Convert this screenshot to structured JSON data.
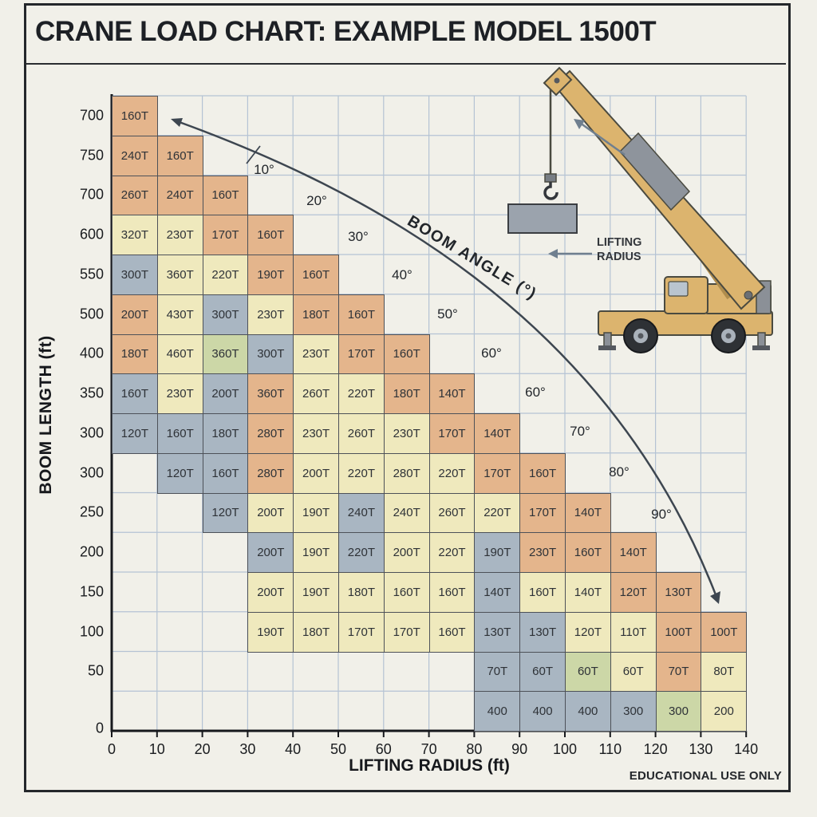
{
  "title": "CRANE LOAD CHART: EXAMPLE MODEL 1500T",
  "footer_note": "EDUCATIONAL USE ONLY",
  "chart_data": {
    "type": "heatmap",
    "title": "CRANE LOAD CHART: EXAMPLE MODEL 1500T",
    "xlabel": "LIFTING RADIUS (ft)",
    "ylabel": "BOOM LENGTH (ft)",
    "x_ticks": [
      "0",
      "10",
      "20",
      "30",
      "40",
      "50",
      "60",
      "70",
      "80",
      "90",
      "100",
      "110",
      "120",
      "130",
      "140"
    ],
    "y_axis_origin": "0",
    "boom_angle_label": "BOOM ANGLE (°)",
    "angle_labels": [
      "10°",
      "20°",
      "30°",
      "40°",
      "50°",
      "60°",
      "60°",
      "70°",
      "80°",
      "90°"
    ],
    "cell_colors": {
      "t": "#e4b58c",
      "c": "#efe9bd",
      "b": "#a9b6c2",
      "g": "#ccd7a7"
    },
    "rows": [
      {
        "boom_length": "700",
        "start_col": 0,
        "cells": [
          [
            "160T",
            "t"
          ]
        ]
      },
      {
        "boom_length": "750",
        "start_col": 0,
        "cells": [
          [
            "240T",
            "t"
          ],
          [
            "160T",
            "t"
          ]
        ]
      },
      {
        "boom_length": "700",
        "start_col": 0,
        "cells": [
          [
            "260T",
            "t"
          ],
          [
            "240T",
            "t"
          ],
          [
            "160T",
            "t"
          ]
        ]
      },
      {
        "boom_length": "600",
        "start_col": 0,
        "cells": [
          [
            "320T",
            "c"
          ],
          [
            "230T",
            "c"
          ],
          [
            "170T",
            "t"
          ],
          [
            "160T",
            "t"
          ]
        ]
      },
      {
        "boom_length": "550",
        "start_col": 0,
        "cells": [
          [
            "300T",
            "b"
          ],
          [
            "360T",
            "c"
          ],
          [
            "220T",
            "c"
          ],
          [
            "190T",
            "t"
          ],
          [
            "160T",
            "t"
          ]
        ]
      },
      {
        "boom_length": "500",
        "start_col": 0,
        "cells": [
          [
            "200T",
            "t"
          ],
          [
            "430T",
            "c"
          ],
          [
            "300T",
            "b"
          ],
          [
            "230T",
            "c"
          ],
          [
            "180T",
            "t"
          ],
          [
            "160T",
            "t"
          ]
        ]
      },
      {
        "boom_length": "400",
        "start_col": 0,
        "cells": [
          [
            "180T",
            "t"
          ],
          [
            "460T",
            "c"
          ],
          [
            "360T",
            "g"
          ],
          [
            "300T",
            "b"
          ],
          [
            "230T",
            "c"
          ],
          [
            "170T",
            "t"
          ],
          [
            "160T",
            "t"
          ]
        ]
      },
      {
        "boom_length": "350",
        "start_col": 0,
        "cells": [
          [
            "160T",
            "b"
          ],
          [
            "230T",
            "c"
          ],
          [
            "200T",
            "b"
          ],
          [
            "360T",
            "t"
          ],
          [
            "260T",
            "c"
          ],
          [
            "220T",
            "c"
          ],
          [
            "180T",
            "t"
          ],
          [
            "140T",
            "t"
          ]
        ]
      },
      {
        "boom_length": "300",
        "start_col": 0,
        "cells": [
          [
            "120T",
            "b"
          ],
          [
            "160T",
            "b"
          ],
          [
            "180T",
            "b"
          ],
          [
            "280T",
            "t"
          ],
          [
            "230T",
            "c"
          ],
          [
            "260T",
            "c"
          ],
          [
            "230T",
            "c"
          ],
          [
            "170T",
            "t"
          ],
          [
            "140T",
            "t"
          ]
        ]
      },
      {
        "boom_length": "300",
        "start_col": 1,
        "cells": [
          [
            "120T",
            "b"
          ],
          [
            "160T",
            "b"
          ],
          [
            "280T",
            "t"
          ],
          [
            "200T",
            "c"
          ],
          [
            "220T",
            "c"
          ],
          [
            "280T",
            "c"
          ],
          [
            "220T",
            "c"
          ],
          [
            "170T",
            "t"
          ],
          [
            "160T",
            "t"
          ]
        ]
      },
      {
        "boom_length": "250",
        "start_col": 2,
        "cells": [
          [
            "120T",
            "b"
          ],
          [
            "200T",
            "c"
          ],
          [
            "190T",
            "c"
          ],
          [
            "240T",
            "b"
          ],
          [
            "240T",
            "c"
          ],
          [
            "260T",
            "c"
          ],
          [
            "220T",
            "c"
          ],
          [
            "170T",
            "t"
          ],
          [
            "140T",
            "t"
          ]
        ]
      },
      {
        "boom_length": "200",
        "start_col": 3,
        "cells": [
          [
            "200T",
            "b"
          ],
          [
            "190T",
            "c"
          ],
          [
            "220T",
            "b"
          ],
          [
            "200T",
            "c"
          ],
          [
            "220T",
            "c"
          ],
          [
            "190T",
            "b"
          ],
          [
            "230T",
            "t"
          ],
          [
            "160T",
            "t"
          ],
          [
            "140T",
            "t"
          ]
        ]
      },
      {
        "boom_length": "150",
        "start_col": 3,
        "cells": [
          [
            "200T",
            "c"
          ],
          [
            "190T",
            "c"
          ],
          [
            "180T",
            "c"
          ],
          [
            "160T",
            "c"
          ],
          [
            "160T",
            "c"
          ],
          [
            "140T",
            "b"
          ],
          [
            "160T",
            "c"
          ],
          [
            "140T",
            "c"
          ],
          [
            "120T",
            "t"
          ],
          [
            "130T",
            "t"
          ]
        ]
      },
      {
        "boom_length": "100",
        "start_col": 3,
        "cells": [
          [
            "190T",
            "c"
          ],
          [
            "180T",
            "c"
          ],
          [
            "170T",
            "c"
          ],
          [
            "170T",
            "c"
          ],
          [
            "160T",
            "c"
          ],
          [
            "130T",
            "b"
          ],
          [
            "130T",
            "b"
          ],
          [
            "120T",
            "c"
          ],
          [
            "110T",
            "c"
          ],
          [
            "100T",
            "t"
          ],
          [
            "100T",
            "t"
          ]
        ]
      },
      {
        "boom_length": "50",
        "start_col": 8,
        "cells": [
          [
            "70T",
            "b"
          ],
          [
            "60T",
            "b"
          ],
          [
            "60T",
            "g"
          ],
          [
            "60T",
            "c"
          ],
          [
            "70T",
            "t"
          ],
          [
            "80T",
            "c"
          ]
        ]
      },
      {
        "boom_length": "",
        "start_col": 8,
        "cells": [
          [
            "400",
            "b"
          ],
          [
            "400",
            "b"
          ],
          [
            "400",
            "b"
          ],
          [
            "300",
            "b"
          ],
          [
            "300",
            "g"
          ],
          [
            "200",
            "c"
          ]
        ]
      }
    ]
  },
  "crane": {
    "lifting_radius_line1": "LIFTING",
    "lifting_radius_line2": "RADIUS"
  }
}
